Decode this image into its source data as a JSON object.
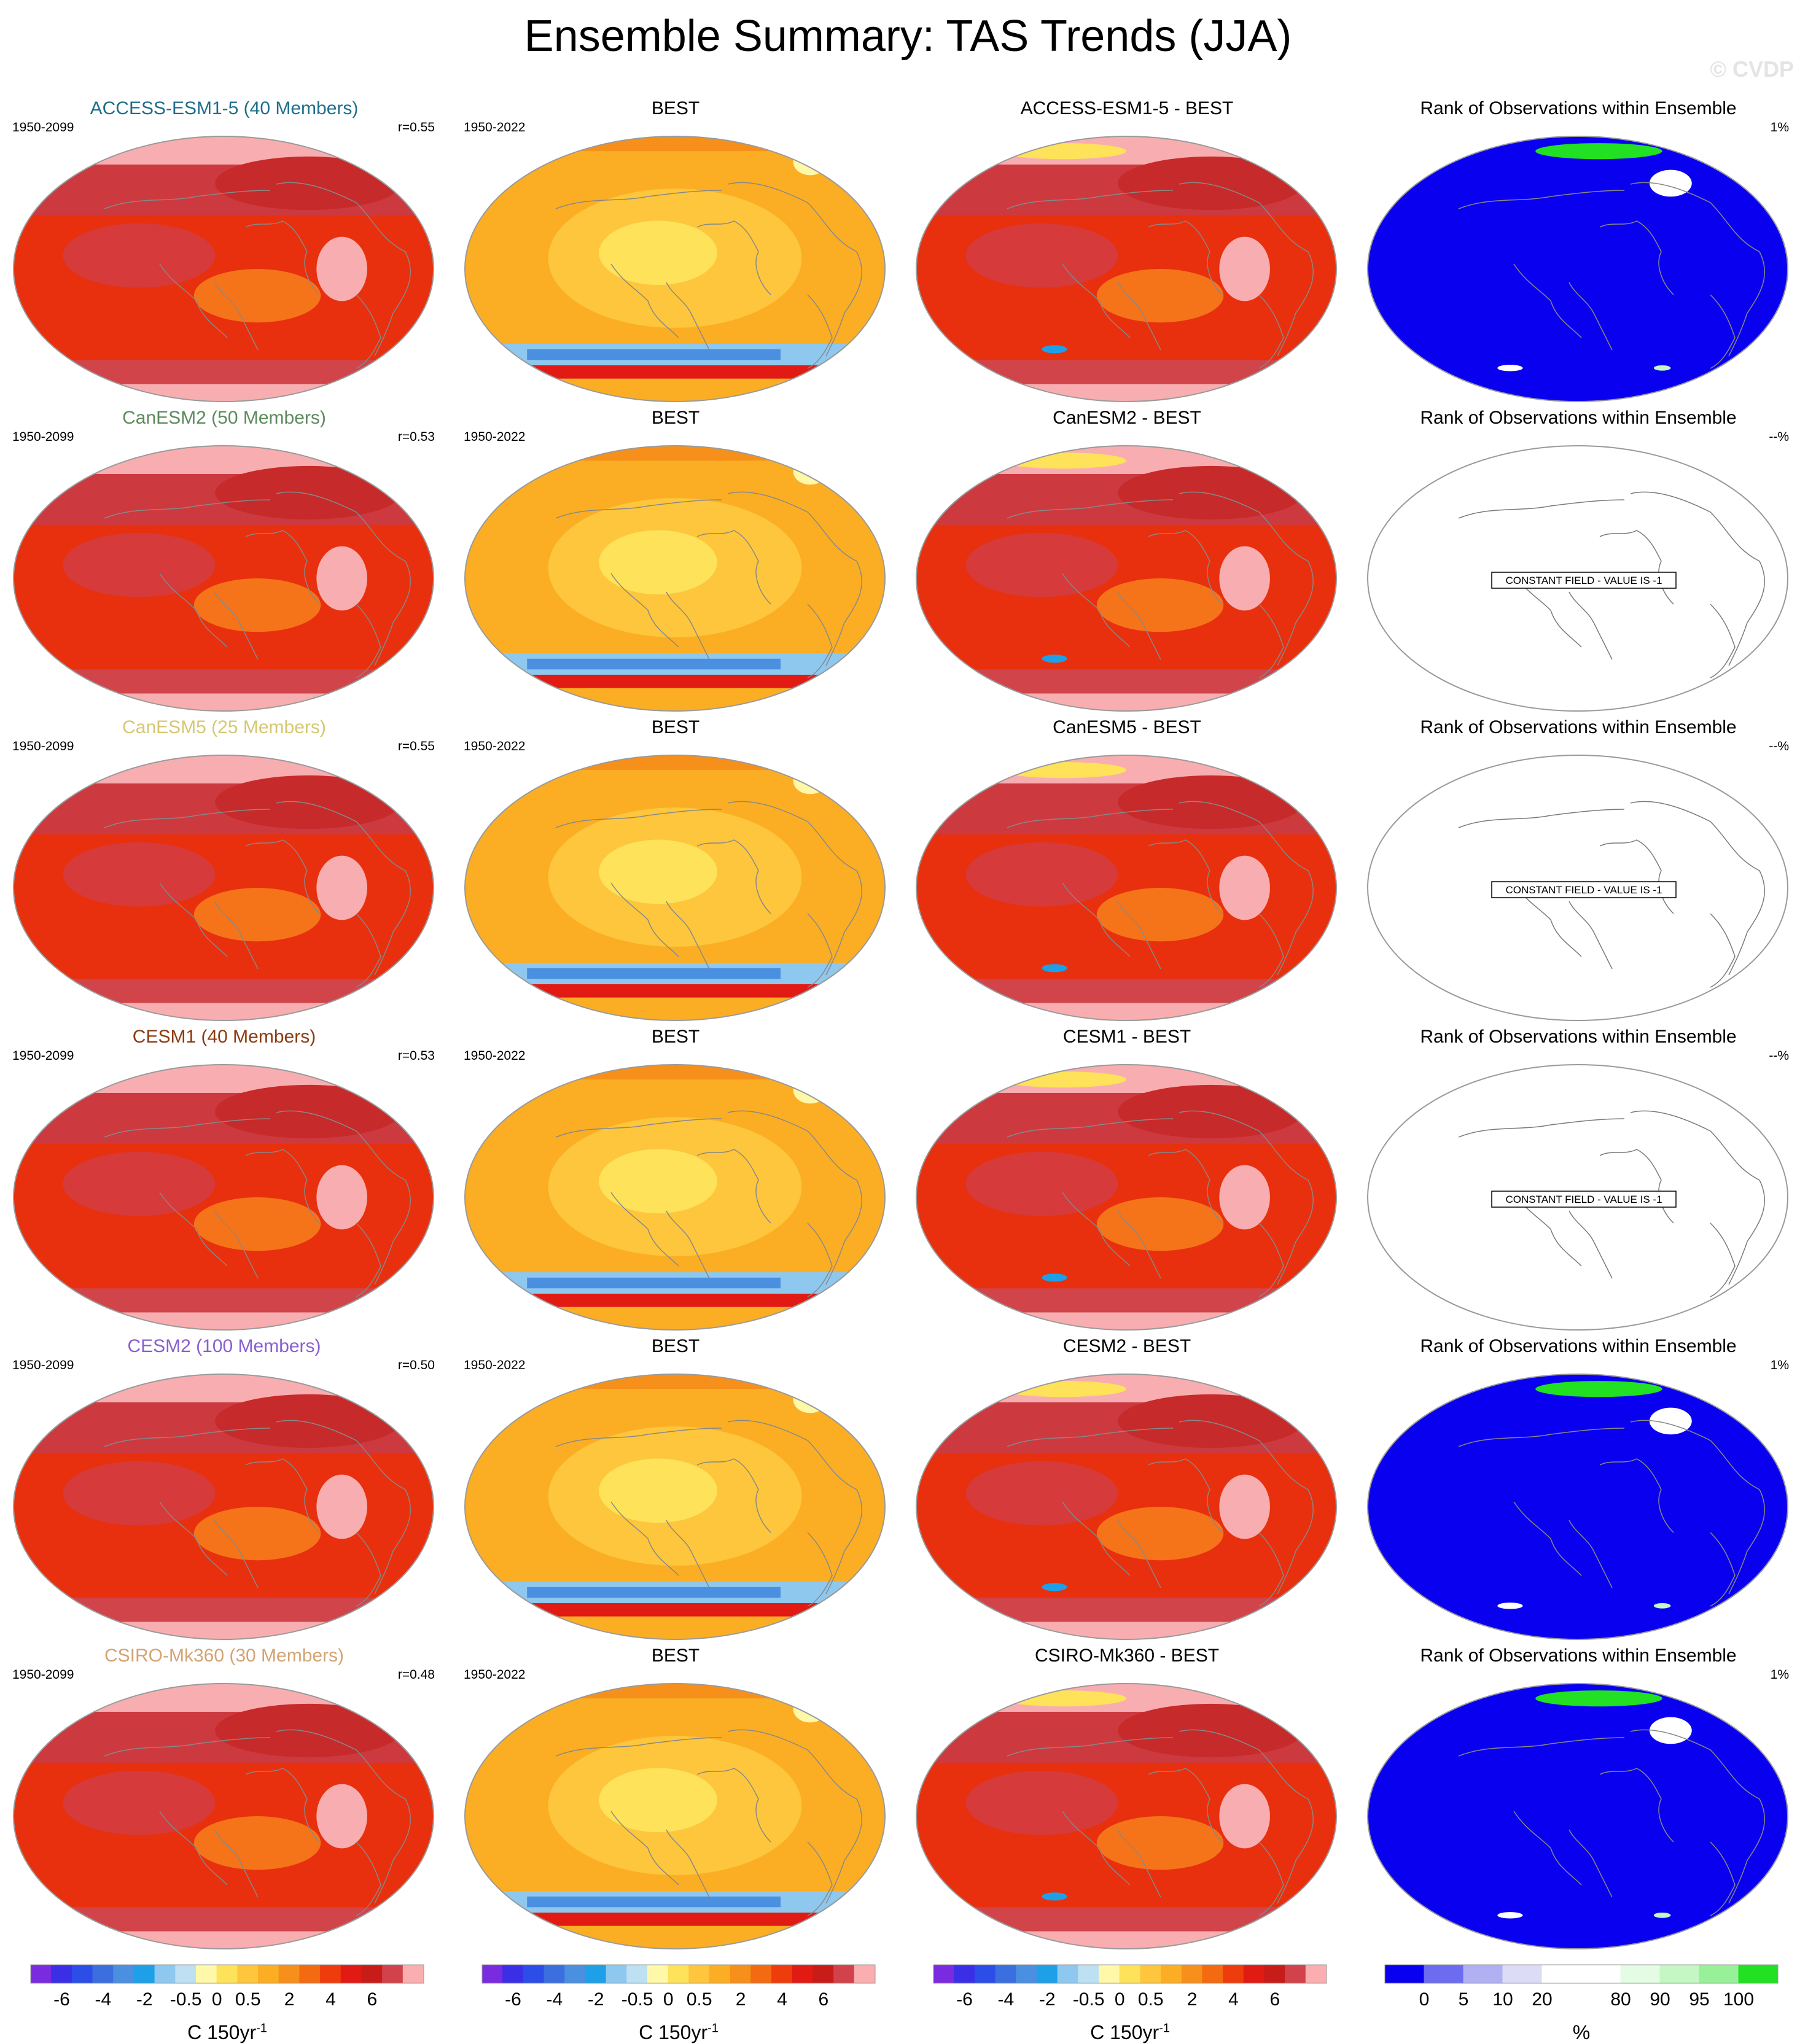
{
  "title": "Ensemble Summary: TAS Trends (JJA)",
  "watermark": "© CVDP",
  "rows": [
    {
      "model": "ACCESS-ESM1-5 (40 Members)",
      "model_color": "#1f6e8c",
      "period_model": "1950-2099",
      "r": "r=0.55",
      "obs": "BEST",
      "period_obs": "1950-2022",
      "diff": "ACCESS-ESM1-5 - BEST",
      "rank_title": "Rank of Observations within Ensemble",
      "rank_pct": "1%",
      "rank_constant": false
    },
    {
      "model": "CanESM2 (50 Members)",
      "model_color": "#5d8a5d",
      "period_model": "1950-2099",
      "r": "r=0.53",
      "obs": "BEST",
      "period_obs": "1950-2022",
      "diff": "CanESM2 - BEST",
      "rank_title": "Rank of Observations within Ensemble",
      "rank_pct": "--%",
      "rank_constant": true
    },
    {
      "model": "CanESM5 (25 Members)",
      "model_color": "#d6c774",
      "period_model": "1950-2099",
      "r": "r=0.55",
      "obs": "BEST",
      "period_obs": "1950-2022",
      "diff": "CanESM5 - BEST",
      "rank_title": "Rank of Observations within Ensemble",
      "rank_pct": "--%",
      "rank_constant": true
    },
    {
      "model": "CESM1 (40 Members)",
      "model_color": "#8b3a0f",
      "period_model": "1950-2099",
      "r": "r=0.53",
      "obs": "BEST",
      "period_obs": "1950-2022",
      "diff": "CESM1 - BEST",
      "rank_title": "Rank of Observations within Ensemble",
      "rank_pct": "--%",
      "rank_constant": true
    },
    {
      "model": "CESM2 (100 Members)",
      "model_color": "#8a5fd1",
      "period_model": "1950-2099",
      "r": "r=0.50",
      "obs": "BEST",
      "period_obs": "1950-2022",
      "diff": "CESM2 - BEST",
      "rank_title": "Rank of Observations within Ensemble",
      "rank_pct": "1%",
      "rank_constant": false
    },
    {
      "model": "CSIRO-Mk360 (30 Members)",
      "model_color": "#d4a373",
      "period_model": "1950-2099",
      "r": "r=0.48",
      "obs": "BEST",
      "period_obs": "1950-2022",
      "diff": "CSIRO-Mk360 - BEST",
      "rank_title": "Rank of Observations within Ensemble",
      "rank_pct": "1%",
      "rank_constant": false
    }
  ],
  "constant_field_label": "CONSTANT FIELD - VALUE IS -1",
  "colorbars": {
    "trend": {
      "colors": [
        "#7a2be0",
        "#3a2ee6",
        "#2d4de8",
        "#3b6fe0",
        "#4a8fe0",
        "#1ea0e8",
        "#8ec8ee",
        "#bde0f2",
        "#fff8a8",
        "#fde25a",
        "#fdc63c",
        "#fbae24",
        "#f6901a",
        "#f36a10",
        "#ee3c0c",
        "#e21a14",
        "#c81c18",
        "#d2424a",
        "#fbaeb0"
      ],
      "labels": [
        "-6",
        "-4",
        "-2",
        "-0.5",
        "0",
        "0.5",
        "2",
        "4",
        "6"
      ],
      "units": "C 150yr",
      "units_sup": "-1"
    },
    "rank": {
      "colors": [
        "#0a00f0",
        "#6c6cf0",
        "#b0b0f2",
        "#dcdcf6",
        "#ffffff",
        "#ffffff",
        "#e4fbe4",
        "#c4f7c4",
        "#98f098",
        "#22e022"
      ],
      "labels": [
        "0",
        "5",
        "10",
        "20",
        "80",
        "90",
        "95",
        "100"
      ],
      "units": "%"
    }
  }
}
